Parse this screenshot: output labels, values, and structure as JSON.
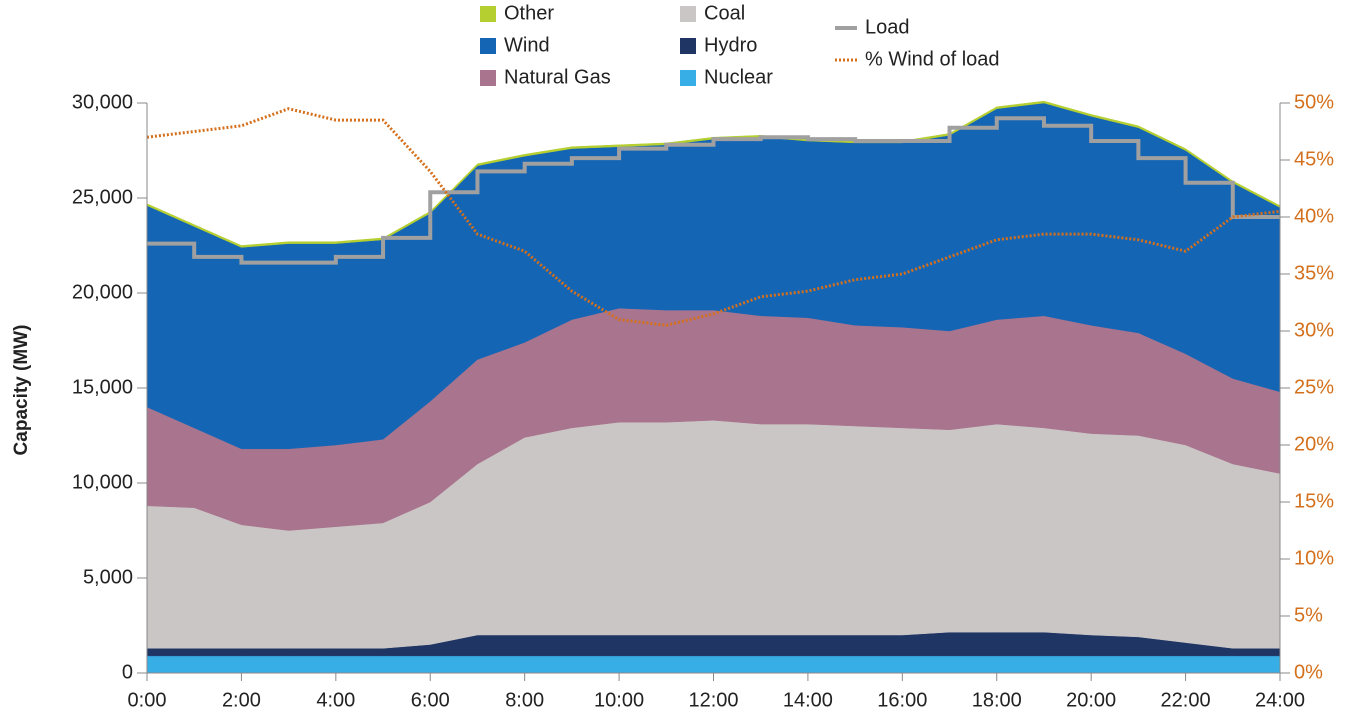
{
  "chart_data": {
    "type": "area",
    "stacked": true,
    "y_label": "Capacity (MW)",
    "x": [
      0,
      1,
      2,
      3,
      4,
      5,
      6,
      7,
      8,
      9,
      10,
      11,
      12,
      13,
      14,
      15,
      16,
      17,
      18,
      19,
      20,
      21,
      22,
      23,
      24
    ],
    "xlim": [
      0,
      24
    ],
    "xticks": [
      {
        "value": 0,
        "label": "0:00"
      },
      {
        "value": 2,
        "label": "2:00"
      },
      {
        "value": 4,
        "label": "4:00"
      },
      {
        "value": 6,
        "label": "6:00"
      },
      {
        "value": 8,
        "label": "8:00"
      },
      {
        "value": 10,
        "label": "10:00"
      },
      {
        "value": 12,
        "label": "12:00"
      },
      {
        "value": 14,
        "label": "14:00"
      },
      {
        "value": 16,
        "label": "16:00"
      },
      {
        "value": 18,
        "label": "18:00"
      },
      {
        "value": 20,
        "label": "20:00"
      },
      {
        "value": 22,
        "label": "22:00"
      },
      {
        "value": 24,
        "label": "24:00"
      }
    ],
    "ylim": [
      0,
      30000
    ],
    "yticks": [
      0,
      {
        "value": 5000,
        "label": "5,000"
      },
      {
        "value": 10000,
        "label": "10,000"
      },
      {
        "value": 15000,
        "label": "15,000"
      },
      {
        "value": 20000,
        "label": "20,000"
      },
      {
        "value": 25000,
        "label": "25,000"
      },
      {
        "value": 30000,
        "label": "30,000"
      }
    ],
    "y2lim": [
      0,
      50
    ],
    "y2ticks": [
      {
        "value": 0,
        "label": "0%"
      },
      {
        "value": 5,
        "label": "5%"
      },
      {
        "value": 10,
        "label": "10%"
      },
      {
        "value": 15,
        "label": "15%"
      },
      {
        "value": 20,
        "label": "20%"
      },
      {
        "value": 25,
        "label": "25%"
      },
      {
        "value": 30,
        "label": "30%"
      },
      {
        "value": 35,
        "label": "35%"
      },
      {
        "value": 40,
        "label": "40%"
      },
      {
        "value": 45,
        "label": "45%"
      },
      {
        "value": 50,
        "label": "50%"
      }
    ],
    "y2color": "#d4701c",
    "series": [
      {
        "name": "Nuclear",
        "color": "#38aee6",
        "values": [
          900,
          900,
          900,
          900,
          900,
          900,
          900,
          900,
          900,
          900,
          900,
          900,
          900,
          900,
          900,
          900,
          900,
          900,
          900,
          900,
          900,
          900,
          900,
          900,
          900
        ]
      },
      {
        "name": "Hydro",
        "color": "#1f3564",
        "values": [
          400,
          400,
          400,
          400,
          400,
          400,
          600,
          1100,
          1100,
          1100,
          1100,
          1100,
          1100,
          1100,
          1100,
          1100,
          1100,
          1250,
          1250,
          1250,
          1100,
          1000,
          700,
          400,
          400
        ]
      },
      {
        "name": "Coal",
        "color": "#cbc6c6",
        "values": [
          7500,
          7400,
          6500,
          6200,
          6400,
          6600,
          7500,
          9000,
          10400,
          10900,
          11200,
          11200,
          11300,
          11100,
          11100,
          11000,
          10900,
          10650,
          10950,
          10750,
          10600,
          10600,
          10400,
          9700,
          9200
        ]
      },
      {
        "name": "Natural Gas",
        "color": "#a8748e",
        "values": [
          5200,
          4200,
          4000,
          4300,
          4300,
          4400,
          5300,
          5500,
          5000,
          5700,
          6000,
          5900,
          5800,
          5700,
          5600,
          5300,
          5300,
          5200,
          5500,
          5900,
          5700,
          5400,
          4800,
          4500,
          4300
        ]
      },
      {
        "name": "Wind",
        "color": "#1565b5",
        "values": [
          10600,
          10600,
          10600,
          10800,
          10600,
          10500,
          9900,
          10200,
          9800,
          9000,
          8500,
          8700,
          9000,
          9400,
          9300,
          9600,
          9700,
          10300,
          11100,
          11200,
          11000,
          10800,
          10700,
          10300,
          9700
        ]
      },
      {
        "name": "Other",
        "color": "#b5cf30",
        "values": [
          100,
          100,
          100,
          100,
          100,
          100,
          100,
          100,
          100,
          100,
          100,
          100,
          100,
          100,
          100,
          100,
          100,
          100,
          100,
          100,
          100,
          100,
          100,
          100,
          100
        ]
      }
    ],
    "lines": [
      {
        "name": "Load",
        "color": "#a0a0a0",
        "step": true,
        "values": [
          22600,
          21900,
          21600,
          21600,
          21900,
          22900,
          25300,
          26400,
          26800,
          27100,
          27600,
          27800,
          28100,
          28200,
          28100,
          28000,
          28000,
          28700,
          29200,
          28800,
          28000,
          27100,
          25800,
          24000,
          24000
        ]
      },
      {
        "name": "% Wind of load",
        "color": "#d4701c",
        "dotted": true,
        "axis": "y2",
        "values": [
          47,
          47.5,
          48,
          49.5,
          48.5,
          48.5,
          44,
          38.5,
          37,
          33.5,
          31,
          30.5,
          31.5,
          33,
          33.5,
          34.5,
          35,
          36.5,
          38,
          38.5,
          38.5,
          38,
          37,
          40,
          40.5
        ]
      }
    ]
  }
}
